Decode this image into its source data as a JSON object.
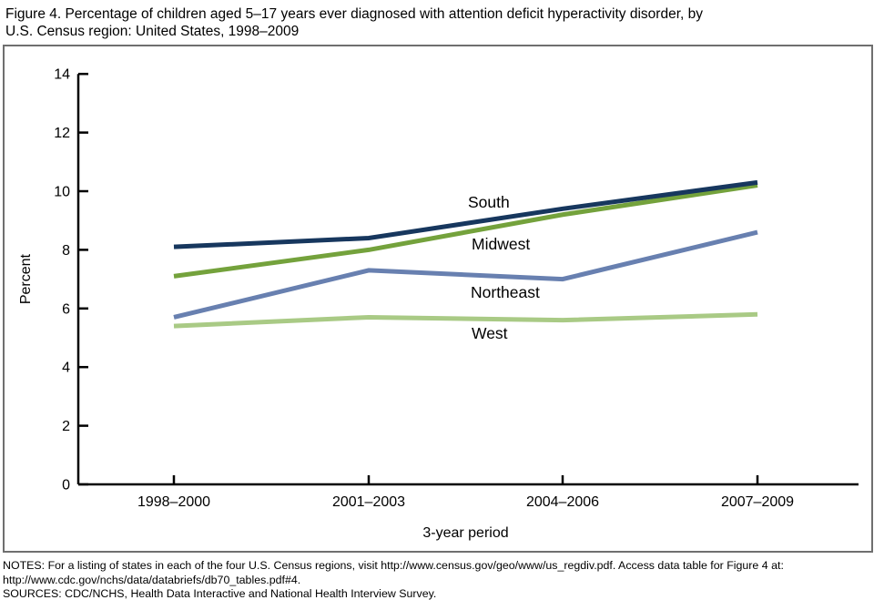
{
  "figure": {
    "title_line1": "Figure 4. Percentage of children aged 5–17 years ever diagnosed with attention deficit hyperactivity disorder, by",
    "title_line2": "U.S. Census region: United States, 1998–2009"
  },
  "chart_data": {
    "type": "line",
    "title": "Percentage of children aged 5–17 years ever diagnosed with ADHD, by U.S. Census region: United States, 1998–2009",
    "xlabel": "3-year period",
    "ylabel": "Percent",
    "categories": [
      "1998–2000",
      "2001–2003",
      "2004–2006",
      "2007–2009"
    ],
    "series": [
      {
        "name": "South",
        "color": "#17375e",
        "values": [
          8.1,
          8.4,
          9.4,
          10.3
        ]
      },
      {
        "name": "Midwest",
        "color": "#74a23c",
        "values": [
          7.1,
          8.0,
          9.2,
          10.2
        ]
      },
      {
        "name": "Northeast",
        "color": "#6880b0",
        "values": [
          5.7,
          7.3,
          7.0,
          8.6
        ]
      },
      {
        "name": "West",
        "color": "#a9ca85",
        "values": [
          5.4,
          5.7,
          5.6,
          5.8
        ]
      }
    ],
    "ylim": [
      0,
      14
    ],
    "yticks": [
      0,
      2,
      4,
      6,
      8,
      10,
      12,
      14
    ],
    "grid": false,
    "legend_position": "inline-labels"
  },
  "notes": {
    "line1": "NOTES: For a listing of states in each of the four U.S. Census regions, visit http://www.census.gov/geo/www/us_regdiv.pdf. Access data table for Figure 4 at:",
    "line2": "http://www.cdc.gov/nchs/data/databriefs/db70_tables.pdf#4.",
    "line3": "SOURCES: CDC/NCHS, Health Data Interactive and National Health Interview Survey."
  },
  "colors": {
    "box_border": "#6f6f6f",
    "axis": "#000000"
  }
}
